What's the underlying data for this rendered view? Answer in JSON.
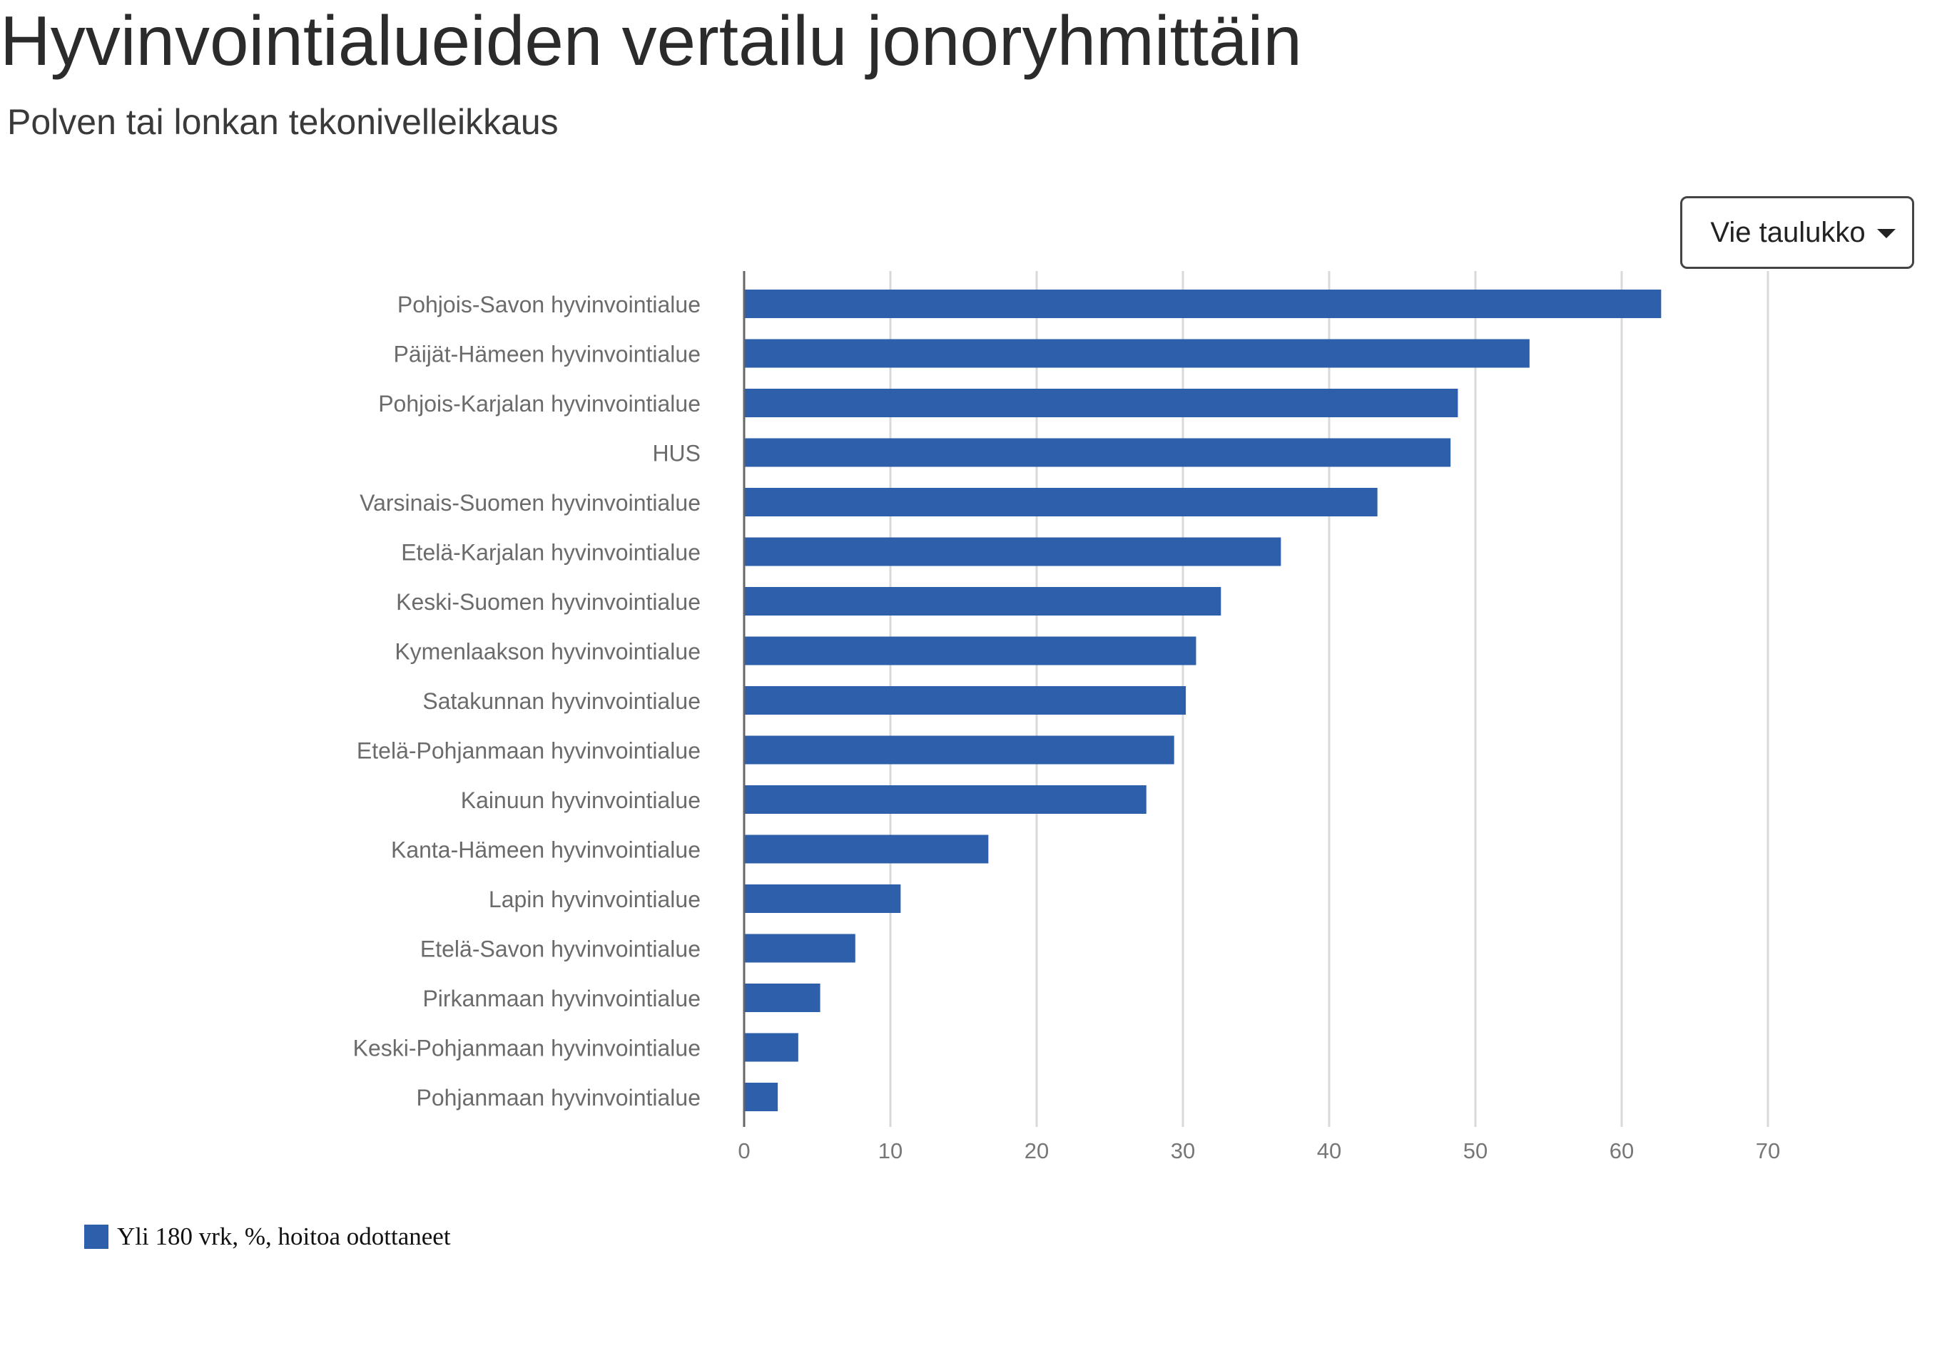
{
  "title": "Hyvinvointialueiden vertailu jonoryhmittäin",
  "subtitle": "Polven tai lonkan tekonivelleikkaus",
  "export_button": {
    "label": "Vie taulukko",
    "icon": "caret-down-icon"
  },
  "colors": {
    "bar": "#2d5fab",
    "grid": "#d9d9d9",
    "axis": "#666666",
    "tick_text": "#777777",
    "category_text": "#6b6b6b"
  },
  "chart_data": {
    "type": "bar",
    "orientation": "horizontal",
    "categories": [
      "Pohjois-Savon hyvinvointialue",
      "Päijät-Hämeen hyvinvointialue",
      "Pohjois-Karjalan hyvinvointialue",
      "HUS",
      "Varsinais-Suomen hyvinvointialue",
      "Etelä-Karjalan hyvinvointialue",
      "Keski-Suomen hyvinvointialue",
      "Kymenlaakson hyvinvointialue",
      "Satakunnan hyvinvointialue",
      "Etelä-Pohjanmaan hyvinvointialue",
      "Kainuun hyvinvointialue",
      "Kanta-Hämeen hyvinvointialue",
      "Lapin hyvinvointialue",
      "Etelä-Savon hyvinvointialue",
      "Pirkanmaan hyvinvointialue",
      "Keski-Pohjanmaan hyvinvointialue",
      "Pohjanmaan hyvinvointialue"
    ],
    "series": [
      {
        "name": "Yli 180 vrk, %, hoitoa odottaneet",
        "values": [
          62.7,
          53.7,
          48.8,
          48.3,
          43.3,
          36.7,
          32.6,
          30.9,
          30.2,
          29.4,
          27.5,
          16.7,
          10.7,
          7.6,
          5.2,
          3.7,
          2.3
        ]
      }
    ],
    "xlim": [
      0,
      70
    ],
    "xticks": [
      0,
      10,
      20,
      30,
      40,
      50,
      60,
      70
    ],
    "grid": true,
    "legend_position": "bottom-left"
  }
}
